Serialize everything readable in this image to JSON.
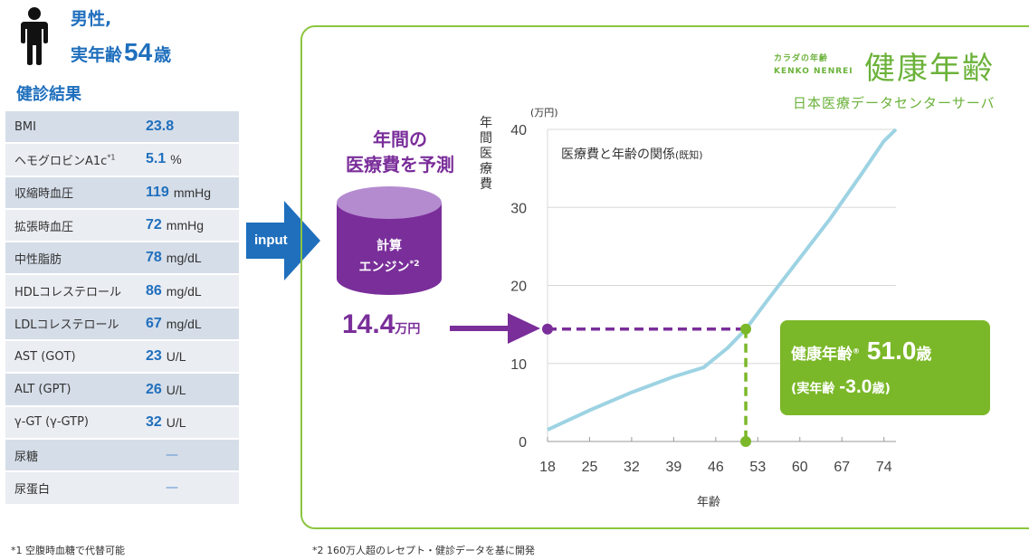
{
  "profile": {
    "gender": "男性,",
    "age_prefix": "実年齢",
    "age": "54",
    "age_suffix": "歳"
  },
  "results_title": "健診結果",
  "results": [
    {
      "label": "BMI",
      "sup": "",
      "value": "23.8",
      "unit": ""
    },
    {
      "label": "ヘモグロビンA1c",
      "sup": "*1",
      "value": "5.1",
      "unit": "%"
    },
    {
      "label": "収縮時血圧",
      "sup": "",
      "value": "119",
      "unit": "mmHg"
    },
    {
      "label": "拡張時血圧",
      "sup": "",
      "value": "72",
      "unit": "mmHg"
    },
    {
      "label": "中性脂肪",
      "sup": "",
      "value": "78",
      "unit": "mg/dL"
    },
    {
      "label": "HDLコレステロール",
      "sup": "",
      "value": "86",
      "unit": "mg/dL"
    },
    {
      "label": "LDLコレステロール",
      "sup": "",
      "value": "67",
      "unit": "mg/dL"
    },
    {
      "label": "AST (GOT)",
      "sup": "",
      "value": "23",
      "unit": "U/L"
    },
    {
      "label": "ALT (GPT)",
      "sup": "",
      "value": "26",
      "unit": "U/L"
    },
    {
      "label": "γ-GT (γ-GTP)",
      "sup": "",
      "value": "32",
      "unit": "U/L"
    },
    {
      "label": "尿糖",
      "sup": "",
      "value": "",
      "unit": "",
      "dash": "—"
    },
    {
      "label": "尿蛋白",
      "sup": "",
      "value": "",
      "unit": "",
      "dash": "—"
    }
  ],
  "input_label": "input",
  "brand": {
    "small_line1": "カラダの年齢",
    "small_line2": "KENKO NENREI",
    "large": "健康年齢",
    "sub": "日本医療データセンターサーバ"
  },
  "predict": {
    "line1": "年間の",
    "line2": "医療費を予測"
  },
  "engine": {
    "line1": "計算",
    "line2": "エンジン",
    "sup": "*2"
  },
  "cost": {
    "value": "14.4",
    "unit": "万円"
  },
  "chart_data": {
    "type": "line",
    "title": "医療費と年齢の関係",
    "title_note": "(既知)",
    "unit_label": "(万円)",
    "ylabel": "年間医療費",
    "xlabel": "年齢",
    "x_ticks": [
      18,
      25,
      32,
      39,
      46,
      53,
      60,
      67,
      74
    ],
    "y_ticks": [
      0,
      10,
      20,
      30,
      40
    ],
    "xlim": [
      18,
      76
    ],
    "ylim": [
      0,
      40
    ],
    "series": [
      {
        "x": [
          18,
          25,
          32,
          39,
          44,
          48,
          51,
          55,
          60,
          65,
          70,
          74,
          76
        ],
        "y": [
          1.5,
          4.0,
          6.3,
          8.3,
          9.5,
          12.0,
          14.4,
          18.5,
          23.5,
          28.5,
          34.0,
          38.5,
          40.0
        ]
      }
    ],
    "marker": {
      "x": 51,
      "y": 14.4
    },
    "colors": {
      "line": "#9dd3e3",
      "horizontal": "#7a2e9a",
      "vertical": "#7bb829"
    }
  },
  "result": {
    "label": "健康年齢",
    "reg": "®",
    "value": "51.0",
    "suffix": "歳",
    "diff_prefix": "(実年齢",
    "diff_value": "-3.0",
    "diff_suffix": "歳)"
  },
  "footnotes": {
    "note1": "*1 空腹時血糖で代替可能",
    "note2": "*2 160万人超のレセプト・健診データを基に開発"
  }
}
